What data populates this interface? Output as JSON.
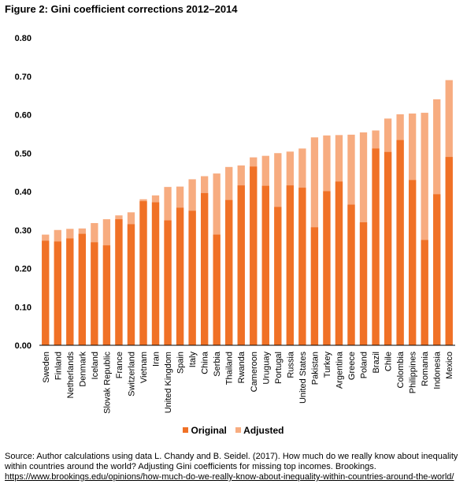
{
  "title": "Figure 2: Gini coefficient corrections 2012–2014",
  "legend": {
    "original": "Original",
    "adjusted": "Adjusted"
  },
  "source": {
    "text": "Source: Author calculations using data L. Chandy and B. Seidel. (2017). How much do we really know about inequality within countries around the world? Adjusting Gini coefficients for missing top incomes. Brookings.",
    "link": "https://www.brookings.edu/opinions/how-much-do-we-really-know-about-inequality-within-countries-around-the-world/"
  },
  "colors": {
    "original": "#F07126",
    "adjusted": "#F7AC80",
    "axis": "#000000"
  },
  "chart_data": {
    "type": "bar",
    "stacked": "overlay",
    "ylim": [
      0,
      0.8
    ],
    "yticks": [
      "0.00",
      "0.10",
      "0.20",
      "0.30",
      "0.40",
      "0.50",
      "0.60",
      "0.70",
      "0.80"
    ],
    "grid": false,
    "legend_position": "bottom",
    "categories": [
      "Sweden",
      "Finland",
      "Netherlands",
      "Denmark",
      "Iceland",
      "Slovak Republic",
      "France",
      "Switzerland",
      "Vietnam",
      "Iran",
      "United Kingdom",
      "Spain",
      "Italy",
      "China",
      "Serbia",
      "Thailand",
      "Rwanda",
      "Cameroon",
      "Uruguay",
      "Portugal",
      "Russia",
      "United States",
      "Pakistan",
      "Turkey",
      "Argentina",
      "Greece",
      "Poland",
      "Brazil",
      "Chile",
      "Colombia",
      "Philippines",
      "Romania",
      "Indonesia",
      "Mexico"
    ],
    "series": [
      {
        "name": "Original",
        "values": [
          0.272,
          0.27,
          0.278,
          0.29,
          0.268,
          0.26,
          0.328,
          0.315,
          0.375,
          0.372,
          0.325,
          0.358,
          0.35,
          0.396,
          0.288,
          0.378,
          0.416,
          0.465,
          0.415,
          0.36,
          0.416,
          0.41,
          0.307,
          0.401,
          0.426,
          0.366,
          0.32,
          0.512,
          0.503,
          0.534,
          0.43,
          0.274,
          0.393,
          0.49
        ]
      },
      {
        "name": "Adjusted",
        "values": [
          0.288,
          0.3,
          0.303,
          0.304,
          0.318,
          0.328,
          0.338,
          0.346,
          0.38,
          0.39,
          0.412,
          0.413,
          0.432,
          0.44,
          0.447,
          0.464,
          0.468,
          0.489,
          0.493,
          0.5,
          0.504,
          0.512,
          0.541,
          0.546,
          0.547,
          0.548,
          0.554,
          0.559,
          0.59,
          0.601,
          0.603,
          0.605,
          0.64,
          0.69
        ]
      }
    ]
  }
}
